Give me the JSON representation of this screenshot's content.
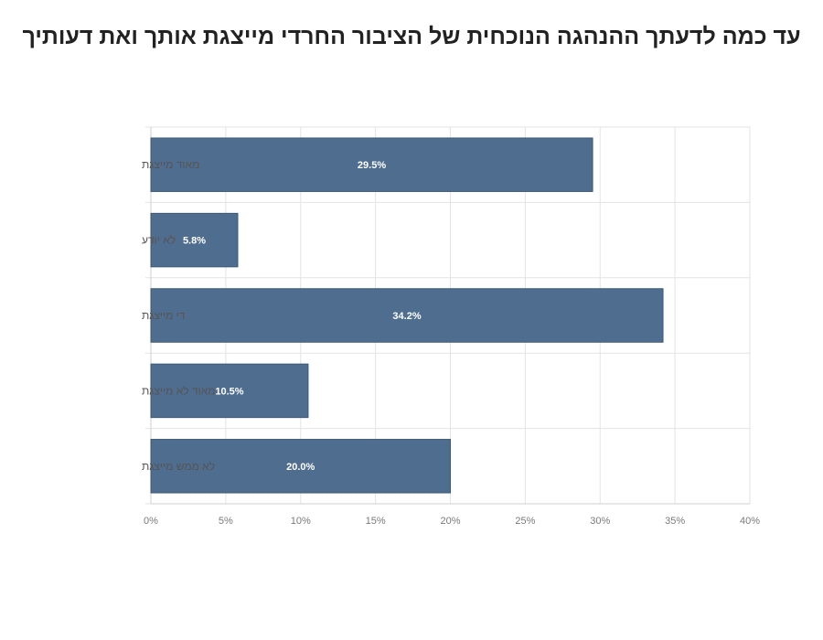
{
  "chart_data": {
    "type": "bar",
    "orientation": "horizontal",
    "title": "עד כמה לדעתך ההנהגה הנוכחית של הציבור החרדי מייצגת אותך ואת דעותיך",
    "categories": [
      "מאוד מייצגת",
      "לא יודע",
      "די מייצגת",
      "מאוד לא מייצגת",
      "לא ממש מייצגת"
    ],
    "values": [
      29.5,
      5.8,
      34.2,
      10.5,
      20.0
    ],
    "data_labels": [
      "29.5%",
      "5.8%",
      "34.2%",
      "10.5%",
      "20.0%"
    ],
    "xlim": [
      0,
      40
    ],
    "x_ticks": [
      "0%",
      "5%",
      "10%",
      "15%",
      "20%",
      "25%",
      "30%",
      "35%",
      "40%"
    ],
    "xlabel": "",
    "ylabel": "",
    "grid": true,
    "legend": "none",
    "bar_color": "#4f6d8f"
  }
}
